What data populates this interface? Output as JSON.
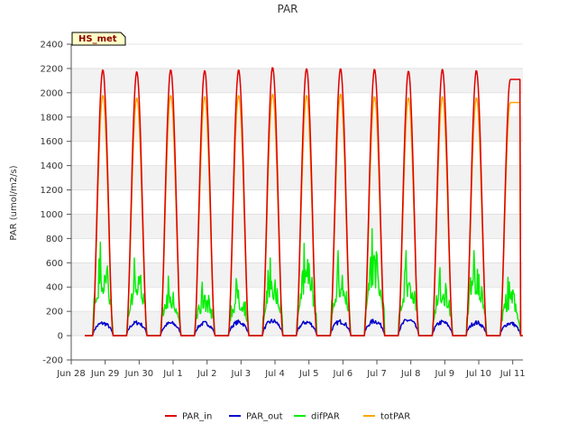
{
  "chart_data": {
    "type": "line",
    "title": "PAR",
    "xlabel": "",
    "ylabel": "PAR (umol/m2/s)",
    "station_label": "HS_met",
    "xlim": [
      0,
      13.3
    ],
    "ylim": [
      -200,
      2400
    ],
    "x_ticks": [
      {
        "pos": 0,
        "label": "Jun 28"
      },
      {
        "pos": 1,
        "label": "Jun 29"
      },
      {
        "pos": 2,
        "label": "Jun 30"
      },
      {
        "pos": 3,
        "label": "Jul 1"
      },
      {
        "pos": 4,
        "label": "Jul 2"
      },
      {
        "pos": 5,
        "label": "Jul 3"
      },
      {
        "pos": 6,
        "label": "Jul 4"
      },
      {
        "pos": 7,
        "label": "Jul 5"
      },
      {
        "pos": 8,
        "label": "Jul 6"
      },
      {
        "pos": 9,
        "label": "Jul 7"
      },
      {
        "pos": 10,
        "label": "Jul 8"
      },
      {
        "pos": 11,
        "label": "Jul 9"
      },
      {
        "pos": 12,
        "label": "Jul 10"
      },
      {
        "pos": 13,
        "label": "Jul 11"
      }
    ],
    "y_ticks": [
      -200,
      0,
      200,
      400,
      600,
      800,
      1000,
      1200,
      1400,
      1600,
      1800,
      2000,
      2200,
      2400
    ],
    "day_start": 0.4,
    "sunrise_frac": 0.23,
    "sunset_frac": 0.83,
    "days_shown": 13,
    "series": [
      {
        "name": "PAR_in",
        "color": "#dd0000",
        "daily_peak": [
          2190,
          2175,
          2190,
          2185,
          2190,
          2210,
          2200,
          2200,
          2195,
          2180,
          2195,
          2185,
          2110
        ]
      },
      {
        "name": "PAR_out",
        "color": "#0000cc",
        "daily_peak": [
          120,
          125,
          120,
          120,
          130,
          140,
          130,
          135,
          140,
          150,
          130,
          125,
          120
        ]
      },
      {
        "name": "difPAR",
        "color": "#00ee00",
        "daily_peak": [
          770,
          640,
          490,
          440,
          470,
          640,
          760,
          700,
          880,
          700,
          560,
          700,
          480
        ]
      },
      {
        "name": "totPAR",
        "color": "#ffa500",
        "daily_peak": [
          1980,
          1960,
          1980,
          1970,
          1980,
          1990,
          1980,
          1990,
          1970,
          1960,
          1970,
          1960,
          1920
        ]
      }
    ],
    "legend_position": "bottom-center",
    "grid": true
  }
}
